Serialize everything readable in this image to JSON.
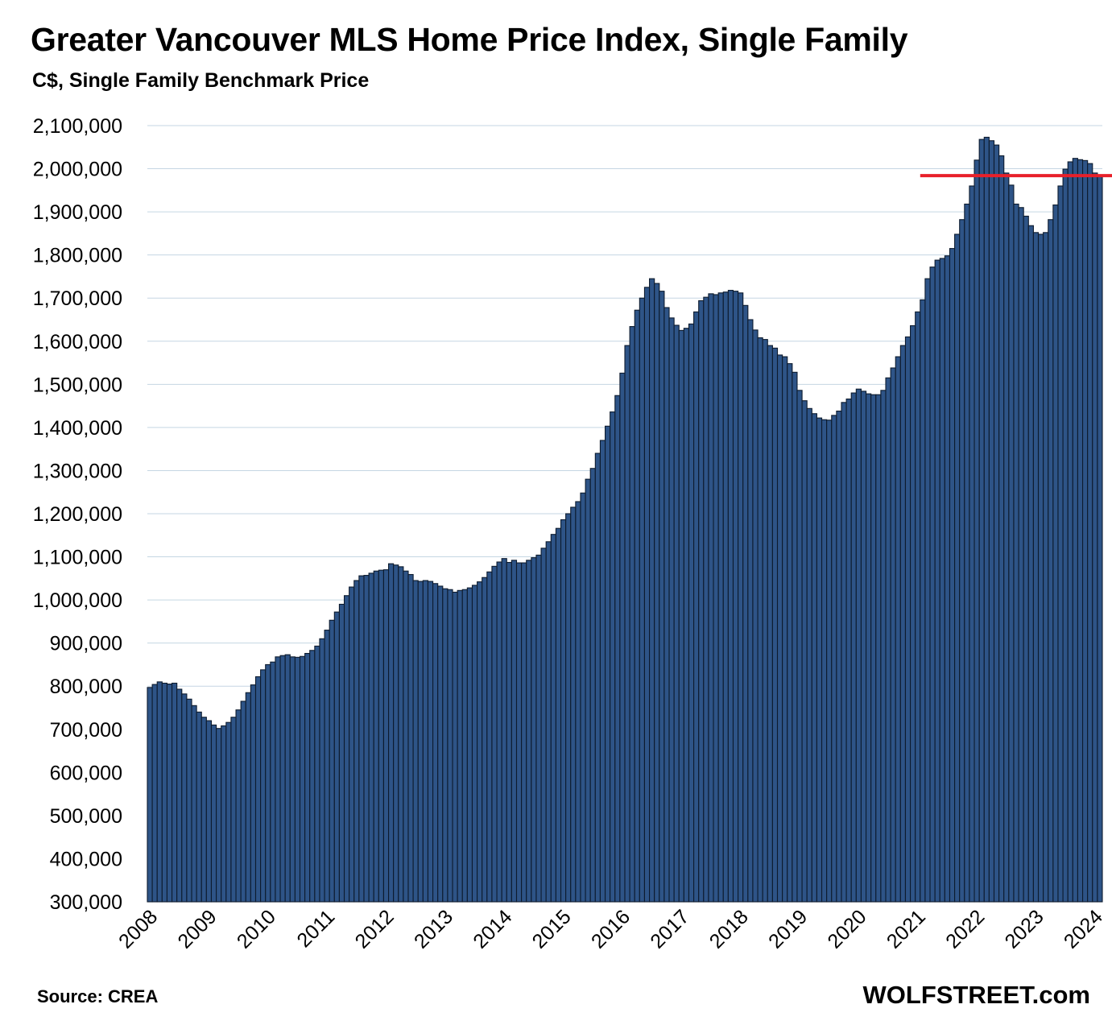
{
  "chart_data": {
    "type": "bar",
    "title": "Greater Vancouver MLS Home Price Index, Single Family",
    "subtitle": "C$, Single Family Benchmark Price",
    "ylabel": "",
    "xlabel": "",
    "ylim": [
      300000,
      2100000
    ],
    "yticks": [
      300000,
      400000,
      500000,
      600000,
      700000,
      800000,
      900000,
      1000000,
      1100000,
      1200000,
      1300000,
      1400000,
      1500000,
      1600000,
      1700000,
      1800000,
      1900000,
      2000000,
      2100000
    ],
    "ytick_labels": [
      "300,000",
      "400,000",
      "500,000",
      "600,000",
      "700,000",
      "800,000",
      "900,000",
      "1,000,000",
      "1,100,000",
      "1,200,000",
      "1,300,000",
      "1,400,000",
      "1,500,000",
      "1,600,000",
      "1,700,000",
      "1,800,000",
      "1,900,000",
      "2,000,000",
      "2,100,000"
    ],
    "x_labels": [
      "2008",
      "2009",
      "2010",
      "2011",
      "2012",
      "2013",
      "2014",
      "2015",
      "2016",
      "2017",
      "2018",
      "2019",
      "2020",
      "2021",
      "2022",
      "2023",
      "2024"
    ],
    "grid": true,
    "bar_color": "#2e5487",
    "reference_line": {
      "value": 1984000,
      "color": "#e8202a",
      "from_month_index": 157
    },
    "source": "Source: CREA",
    "brand": "WOLFSTREET.com",
    "values": [
      797000,
      804000,
      810000,
      807000,
      805000,
      807000,
      793000,
      782000,
      770000,
      755000,
      740000,
      728000,
      720000,
      710000,
      702000,
      708000,
      716000,
      728000,
      745000,
      765000,
      785000,
      803000,
      822000,
      838000,
      850000,
      856000,
      868000,
      871000,
      873000,
      868000,
      867000,
      869000,
      876000,
      883000,
      893000,
      910000,
      930000,
      953000,
      972000,
      990000,
      1010000,
      1030000,
      1045000,
      1056000,
      1057000,
      1062000,
      1067000,
      1069000,
      1070000,
      1084000,
      1081000,
      1077000,
      1067000,
      1059000,
      1045000,
      1043000,
      1045000,
      1043000,
      1038000,
      1032000,
      1026000,
      1024000,
      1018000,
      1022000,
      1024000,
      1028000,
      1034000,
      1042000,
      1052000,
      1065000,
      1078000,
      1088000,
      1096000,
      1087000,
      1092000,
      1086000,
      1086000,
      1092000,
      1098000,
      1104000,
      1120000,
      1135000,
      1152000,
      1166000,
      1186000,
      1200000,
      1215000,
      1228000,
      1248000,
      1280000,
      1305000,
      1340000,
      1370000,
      1403000,
      1436000,
      1474000,
      1526000,
      1590000,
      1634000,
      1672000,
      1700000,
      1725000,
      1745000,
      1734000,
      1716000,
      1678000,
      1654000,
      1637000,
      1625000,
      1630000,
      1640000,
      1668000,
      1694000,
      1702000,
      1710000,
      1708000,
      1712000,
      1714000,
      1718000,
      1716000,
      1712000,
      1683000,
      1650000,
      1626000,
      1608000,
      1604000,
      1590000,
      1584000,
      1568000,
      1564000,
      1548000,
      1528000,
      1486000,
      1462000,
      1444000,
      1432000,
      1422000,
      1418000,
      1417000,
      1428000,
      1438000,
      1458000,
      1466000,
      1480000,
      1489000,
      1484000,
      1478000,
      1476000,
      1476000,
      1486000,
      1515000,
      1538000,
      1564000,
      1590000,
      1610000,
      1636000,
      1668000,
      1696000,
      1745000,
      1772000,
      1788000,
      1792000,
      1798000,
      1815000,
      1848000,
      1882000,
      1918000,
      1960000,
      2020000,
      2068000,
      2073000,
      2065000,
      2055000,
      2030000,
      1990000,
      1962000,
      1918000,
      1910000,
      1890000,
      1868000,
      1852000,
      1848000,
      1852000,
      1882000,
      1916000,
      1960000,
      1999000,
      2016000,
      2024000,
      2021000,
      2019000,
      2012000,
      1990000,
      1985000
    ]
  }
}
